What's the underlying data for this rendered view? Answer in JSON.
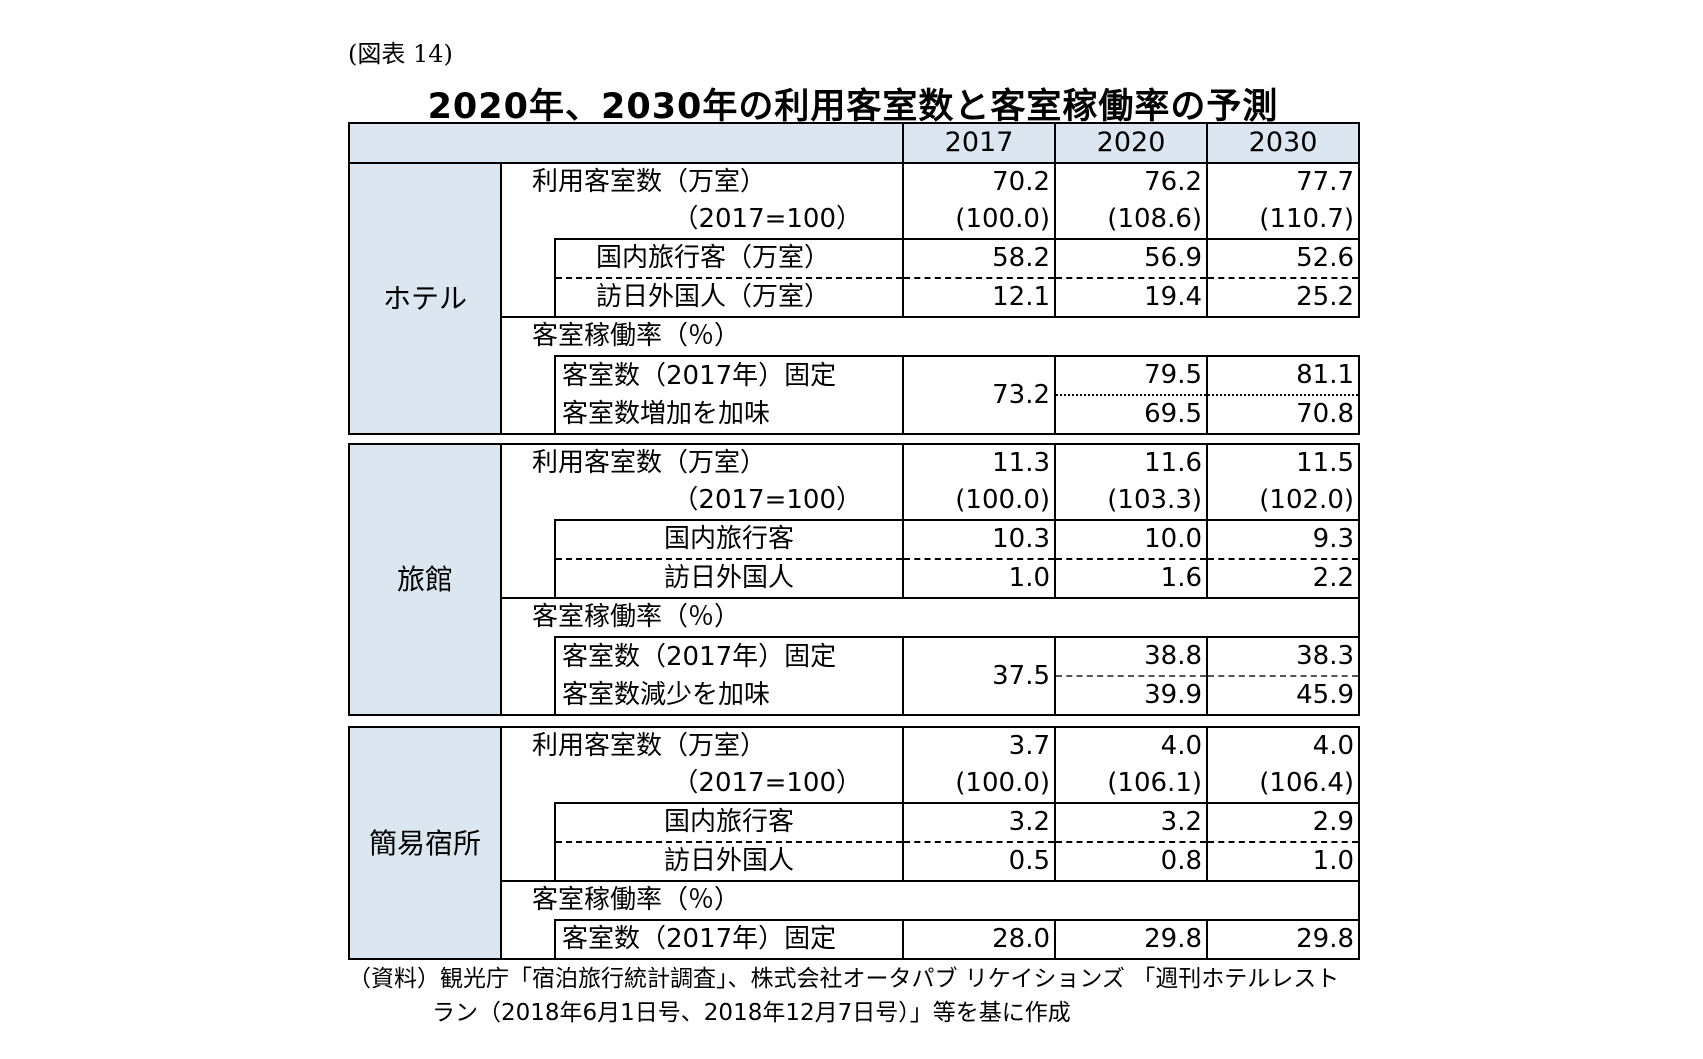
{
  "figure_label": "(図表 14)",
  "title": "2020年、2030年の利用客室数と客室稼働率の予測",
  "chart_data": {
    "type": "table",
    "columns": [
      "2017",
      "2020",
      "2030"
    ],
    "sections": [
      {
        "name": "ホテル",
        "rooms_label": "利用客室数（万室）",
        "index_label": "（2017=100）",
        "rooms": [
          "70.2",
          "76.2",
          "77.7"
        ],
        "index": [
          "(100.0)",
          "(108.6)",
          "(110.7)"
        ],
        "domestic_label": "国内旅行客（万室）",
        "domestic": [
          "58.2",
          "56.9",
          "52.6"
        ],
        "foreign_label": "訪日外国人（万室）",
        "foreign": [
          "12.1",
          "19.4",
          "25.2"
        ],
        "occ_label": "客室稼働率（％）",
        "fixed_label": "客室数（2017年）固定",
        "fixed": [
          "79.5",
          "81.1"
        ],
        "adj_label": "客室数増加を加味",
        "adj": [
          "69.5",
          "70.8"
        ],
        "occ_2017": "73.2"
      },
      {
        "name": "旅館",
        "rooms_label": "利用客室数（万室）",
        "index_label": "（2017=100）",
        "rooms": [
          "11.3",
          "11.6",
          "11.5"
        ],
        "index": [
          "(100.0)",
          "(103.3)",
          "(102.0)"
        ],
        "domestic_label": "国内旅行客",
        "domestic": [
          "10.3",
          "10.0",
          "9.3"
        ],
        "foreign_label": "訪日外国人",
        "foreign": [
          "1.0",
          "1.6",
          "2.2"
        ],
        "occ_label": "客室稼働率（％）",
        "fixed_label": "客室数（2017年）固定",
        "fixed": [
          "38.8",
          "38.3"
        ],
        "adj_label": "客室数減少を加味",
        "adj": [
          "39.9",
          "45.9"
        ],
        "occ_2017": "37.5"
      },
      {
        "name": "簡易宿所",
        "rooms_label": "利用客室数（万室）",
        "index_label": "（2017=100）",
        "rooms": [
          "3.7",
          "4.0",
          "4.0"
        ],
        "index": [
          "(100.0)",
          "(106.1)",
          "(106.4)"
        ],
        "domestic_label": "国内旅行客",
        "domestic": [
          "3.2",
          "3.2",
          "2.9"
        ],
        "foreign_label": "訪日外国人",
        "foreign": [
          "0.5",
          "0.8",
          "1.0"
        ],
        "occ_label": "客室稼働率（％）",
        "fixed_label": "客室数（2017年）固定",
        "fixed": [
          "28.0",
          "29.8",
          "29.8"
        ]
      }
    ]
  },
  "source_note": {
    "line1": "（資料）観光庁「宿泊旅行統計調査」、株式会社オータパブ リケイションズ 「週刊ホテルレスト",
    "line2": "ラン（2018年6月1日号、2018年12月7日号）」等を基に作成"
  },
  "colors": {
    "header_fill": "#dce6f1"
  }
}
